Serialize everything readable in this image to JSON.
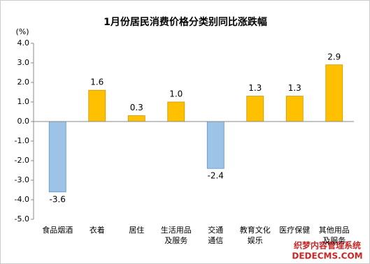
{
  "chart_data": {
    "type": "bar",
    "title": "1月份居民消费价格分类别同比涨跌幅",
    "y_unit": "(%)",
    "categories": [
      "食品烟酒",
      "衣着",
      "居住",
      "生活用品\n及服务",
      "交通\n通信",
      "教育文化\n娱乐",
      "医疗保健",
      "其他用品\n及服务"
    ],
    "values": [
      -3.6,
      1.6,
      0.3,
      1.0,
      -2.4,
      1.3,
      1.3,
      2.9
    ],
    "value_labels": [
      "-3.6",
      "1.6",
      "0.3",
      "1.0",
      "-2.4",
      "1.3",
      "1.3",
      "2.9"
    ],
    "colors": [
      "#9dc3e6",
      "#ffc000",
      "#ffc000",
      "#ffc000",
      "#9dc3e6",
      "#ffc000",
      "#ffc000",
      "#ffc000"
    ],
    "ylim": [
      -5,
      4
    ],
    "yticks": [
      {
        "value": 4,
        "label": "4.0"
      },
      {
        "value": 3,
        "label": "3.0"
      },
      {
        "value": 2,
        "label": "2.0"
      },
      {
        "value": 1,
        "label": "1.0"
      },
      {
        "value": 0,
        "label": "0.0"
      },
      {
        "value": -1,
        "label": "-1.0"
      },
      {
        "value": -2,
        "label": "-2.0"
      },
      {
        "value": -3,
        "label": "-3.0"
      },
      {
        "value": -4,
        "label": "-4.0"
      },
      {
        "value": -5,
        "label": "-5.0"
      }
    ],
    "grid": false,
    "watermark": [
      "织梦内容管理系统",
      "DEDECMS.COM"
    ]
  }
}
